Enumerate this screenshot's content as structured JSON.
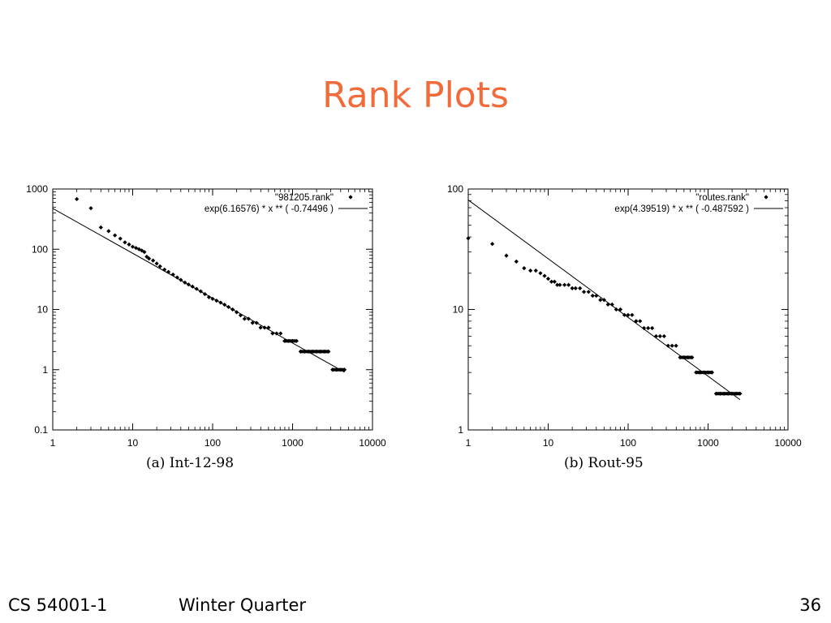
{
  "slide": {
    "title": "Rank Plots",
    "footer_left": "CS 54001-1",
    "footer_mid": "Winter Quarter",
    "page_number": "36"
  },
  "chart_data": [
    {
      "type": "scatter",
      "caption": "(a) Int-12-98",
      "xscale": "log",
      "yscale": "log",
      "xlim": [
        1,
        10000
      ],
      "ylim": [
        0.1,
        1000
      ],
      "xticks": [
        1,
        10,
        100,
        1000,
        10000
      ],
      "xtick_labels": [
        "1",
        "10",
        "100",
        "1000",
        "10000"
      ],
      "yticks": [
        0.1,
        1,
        10,
        100,
        1000
      ],
      "ytick_labels": [
        "0.1",
        "1",
        "10",
        "100",
        "1000"
      ],
      "legend_position": "top-right",
      "series": [
        {
          "name": "\"981205.rank\"",
          "kind": "points",
          "x": [
            2,
            3,
            4,
            5,
            6,
            7,
            8,
            9,
            10,
            11,
            12,
            13,
            14,
            15,
            16,
            18,
            20,
            22,
            25,
            28,
            32,
            36,
            40,
            45,
            50,
            56,
            63,
            71,
            80,
            90,
            100,
            112,
            126,
            141,
            158,
            178,
            200,
            224,
            251,
            282,
            316,
            355,
            398,
            447,
            501,
            562,
            631,
            708,
            794,
            891,
            1000,
            1122,
            1259,
            1413,
            1585,
            1778,
            1995,
            2239,
            2512,
            2818,
            3162,
            3548,
            3981,
            4467
          ],
          "y": [
            680,
            480,
            230,
            200,
            170,
            150,
            130,
            120,
            110,
            105,
            100,
            95,
            90,
            75,
            70,
            65,
            58,
            52,
            46,
            42,
            38,
            34,
            31,
            28,
            26,
            24,
            22,
            20,
            18,
            16,
            15,
            14,
            13,
            12,
            11,
            10,
            9,
            8,
            7,
            7,
            6,
            6,
            5,
            5,
            5,
            4,
            4,
            4,
            3,
            3,
            3,
            3,
            2,
            2,
            2,
            2,
            2,
            2,
            2,
            2,
            1,
            1,
            1,
            1
          ]
        },
        {
          "name": "exp(6.16576)  * x ** (  -0.74496 )",
          "kind": "line",
          "intercept_ln": 6.16576,
          "exponent": -0.74496,
          "x_range": [
            1,
            4467
          ]
        }
      ]
    },
    {
      "type": "scatter",
      "caption": "(b) Rout-95",
      "xscale": "log",
      "yscale": "log",
      "xlim": [
        1,
        10000
      ],
      "ylim": [
        1,
        100
      ],
      "xticks": [
        1,
        10,
        100,
        1000,
        10000
      ],
      "xtick_labels": [
        "1",
        "10",
        "100",
        "1000",
        "10000"
      ],
      "yticks": [
        1,
        10,
        100
      ],
      "ytick_labels": [
        "1",
        "10",
        "100"
      ],
      "legend_position": "top-right",
      "series": [
        {
          "name": "\"routes.rank\"",
          "kind": "points",
          "x": [
            1,
            2,
            3,
            4,
            5,
            6,
            7,
            8,
            9,
            10,
            11,
            12,
            13,
            14,
            16,
            18,
            20,
            22,
            25,
            28,
            32,
            36,
            40,
            45,
            50,
            56,
            63,
            71,
            80,
            90,
            100,
            112,
            126,
            141,
            158,
            178,
            200,
            224,
            251,
            282,
            316,
            355,
            398,
            447,
            501,
            562,
            631,
            708,
            794,
            891,
            1000,
            1122,
            1259,
            1413,
            1585,
            1778,
            1995,
            2239,
            2512
          ],
          "y": [
            39,
            35,
            28,
            25,
            22,
            21,
            21,
            20,
            19,
            18,
            17,
            17,
            16,
            16,
            16,
            16,
            15,
            15,
            15,
            14,
            14,
            13,
            13,
            12,
            12,
            11,
            11,
            10,
            10,
            9,
            9,
            9,
            8,
            8,
            7,
            7,
            7,
            6,
            6,
            6,
            5,
            5,
            5,
            4,
            4,
            4,
            4,
            3,
            3,
            3,
            3,
            3,
            2,
            2,
            2,
            2,
            2,
            2,
            2
          ]
        },
        {
          "name": "exp(4.39519)  * x ** (  -0.487592 )",
          "kind": "line",
          "intercept_ln": 4.39519,
          "exponent": -0.487592,
          "x_range": [
            1,
            2512
          ]
        }
      ]
    }
  ]
}
